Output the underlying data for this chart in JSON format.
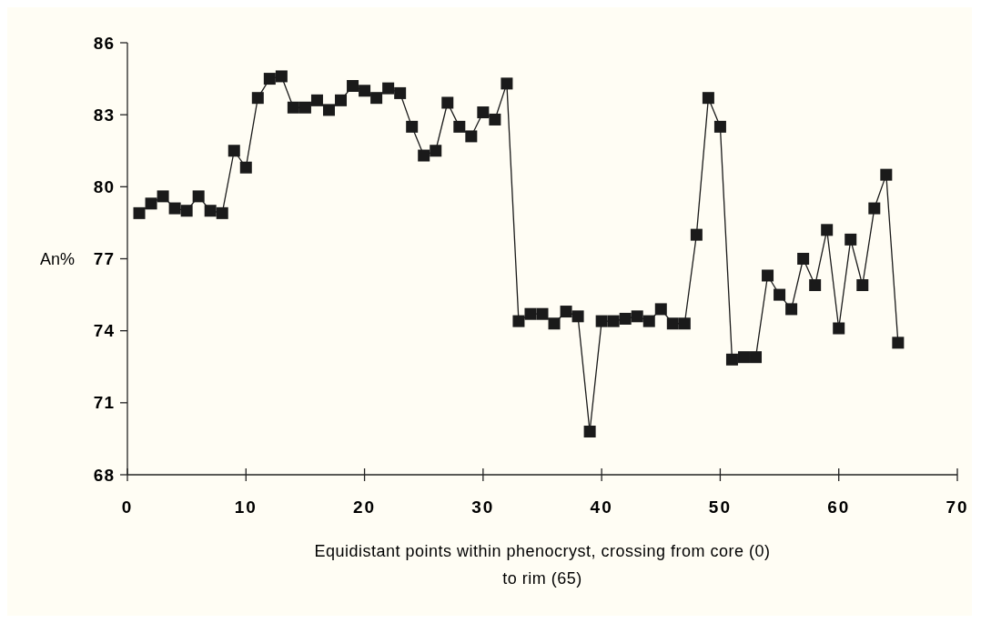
{
  "chart_data": {
    "type": "line",
    "xlabel": "Equidistant points within phenocryst, crossing from core (0) to rim (65)",
    "ylabel": "An%",
    "x": [
      1,
      2,
      3,
      4,
      5,
      6,
      7,
      8,
      9,
      10,
      11,
      12,
      13,
      14,
      15,
      16,
      17,
      18,
      19,
      20,
      21,
      22,
      23,
      24,
      25,
      26,
      27,
      28,
      29,
      30,
      31,
      32,
      33,
      34,
      35,
      36,
      37,
      38,
      39,
      40,
      41,
      42,
      43,
      44,
      45,
      46,
      47,
      48,
      49,
      50,
      51,
      52,
      53,
      54,
      55,
      56,
      57,
      58,
      59,
      60,
      61,
      62,
      63,
      64,
      65
    ],
    "series": [
      {
        "color": "#1a1a1a",
        "values": [
          78.9,
          79.3,
          79.6,
          79.1,
          79.0,
          79.6,
          79.0,
          78.9,
          81.5,
          80.8,
          83.7,
          84.5,
          84.6,
          83.3,
          83.3,
          83.6,
          83.2,
          83.6,
          84.2,
          84.0,
          83.7,
          84.1,
          83.9,
          82.5,
          81.3,
          81.5,
          83.5,
          82.5,
          82.1,
          83.1,
          82.8,
          84.3,
          74.4,
          74.7,
          74.7,
          74.3,
          74.8,
          74.6,
          69.8,
          74.4,
          74.4,
          74.5,
          74.6,
          74.4,
          74.9,
          74.3,
          74.3,
          78.0,
          83.7,
          82.5,
          72.8,
          72.9,
          72.9,
          76.3,
          75.5,
          74.9,
          77.0,
          75.9,
          78.2,
          74.1,
          77.8,
          75.9,
          79.1,
          80.5,
          73.5
        ]
      }
    ],
    "xlim": [
      0,
      70
    ],
    "xticks": [
      0,
      10,
      20,
      30,
      40,
      50,
      60,
      70
    ],
    "ylim": [
      68,
      86
    ],
    "yticks": [
      68,
      71,
      74,
      77,
      80,
      83,
      86
    ],
    "marker": "square",
    "line_style": "solid"
  }
}
